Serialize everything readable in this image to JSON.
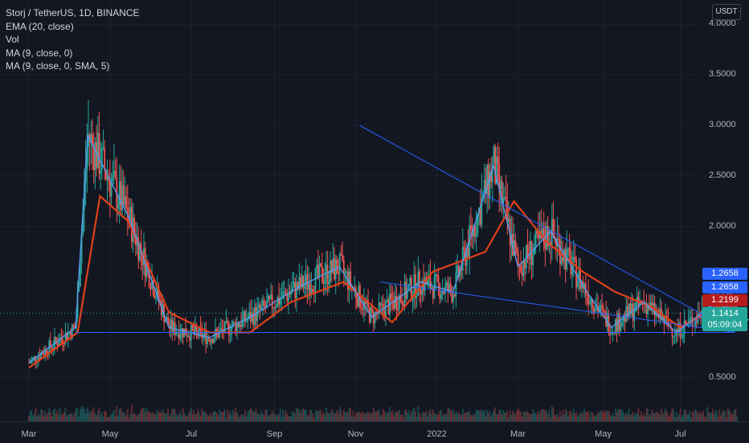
{
  "legend": {
    "symbol": "Storj / TetherUS, 1D, BINANCE",
    "ema": "EMA (20, close)",
    "vol": "Vol",
    "ma1": "MA (9, close, 0)",
    "ma2": "MA (9, close, 0, SMA, 5)"
  },
  "price_axis": {
    "unit": "USDT",
    "ticks": [
      "4.0000",
      "3.5000",
      "3.0000",
      "2.5000",
      "2.0000",
      "0.5000"
    ]
  },
  "badges": {
    "ma_a": "1.2658",
    "ma_b": "1.2658",
    "ema": "1.2199",
    "last_price": "1.1414",
    "countdown": "05:09:04"
  },
  "time_axis": [
    "Mar",
    "May",
    "Jul",
    "Sep",
    "Nov",
    "2022",
    "Mar",
    "May",
    "Jul"
  ],
  "colors": {
    "background": "#131722",
    "up": "#26a69a",
    "down": "#ef5350",
    "ema": "#e0401a",
    "ma": "#5b9cf6",
    "trendline": "#2962ff",
    "projection": "#26c6da"
  },
  "chart_data": {
    "type": "candlestick",
    "title": "Storj / TetherUS, 1D, BINANCE",
    "ylim": [
      0.2,
      4.2
    ],
    "x_ticks": [
      "Mar",
      "May",
      "Jul",
      "Sep",
      "Nov",
      "2022",
      "Mar",
      "May",
      "Jul"
    ],
    "series": [
      {
        "name": "EMA (20, close)",
        "points": [
          [
            0.55,
            0.6
          ],
          [
            1.75,
            0.95
          ],
          [
            2.3,
            2.3
          ],
          [
            3.0,
            2.05
          ],
          [
            4.0,
            1.15
          ],
          [
            5.0,
            0.95
          ],
          [
            6.0,
            0.95
          ],
          [
            7.0,
            1.25
          ],
          [
            8.3,
            1.45
          ],
          [
            9.5,
            1.05
          ],
          [
            10.5,
            1.55
          ],
          [
            11.8,
            1.75
          ],
          [
            12.5,
            2.25
          ],
          [
            13.3,
            1.85
          ],
          [
            14.2,
            1.55
          ],
          [
            15.0,
            1.35
          ],
          [
            15.9,
            1.2
          ],
          [
            16.6,
            1.0
          ],
          [
            17.5,
            1.2
          ],
          [
            18.0,
            1.12
          ]
        ]
      },
      {
        "name": "MA (9, close, 0)",
        "points": [
          [
            0.55,
            0.65
          ],
          [
            1.7,
            1.0
          ],
          [
            2.0,
            2.9
          ],
          [
            3.0,
            2.1
          ],
          [
            4.0,
            1.0
          ],
          [
            5.0,
            0.9
          ],
          [
            6.0,
            1.1
          ],
          [
            7.2,
            1.4
          ],
          [
            8.2,
            1.6
          ],
          [
            9.0,
            1.1
          ],
          [
            10.2,
            1.45
          ],
          [
            11.0,
            1.35
          ],
          [
            12.0,
            2.6
          ],
          [
            12.6,
            1.6
          ],
          [
            13.4,
            1.95
          ],
          [
            14.3,
            1.35
          ],
          [
            14.9,
            1.0
          ],
          [
            15.7,
            1.25
          ],
          [
            16.5,
            0.95
          ],
          [
            17.5,
            1.25
          ],
          [
            18.0,
            1.15
          ]
        ]
      }
    ],
    "annotations": {
      "support_line": 0.95,
      "last_price": 1.1414,
      "projection": [
        [
          17.2,
          1.25
        ],
        [
          17.8,
          1.0
        ],
        [
          18.3,
          1.08
        ],
        [
          19.0,
          1.15
        ],
        [
          19.2,
          1.22
        ]
      ]
    }
  }
}
